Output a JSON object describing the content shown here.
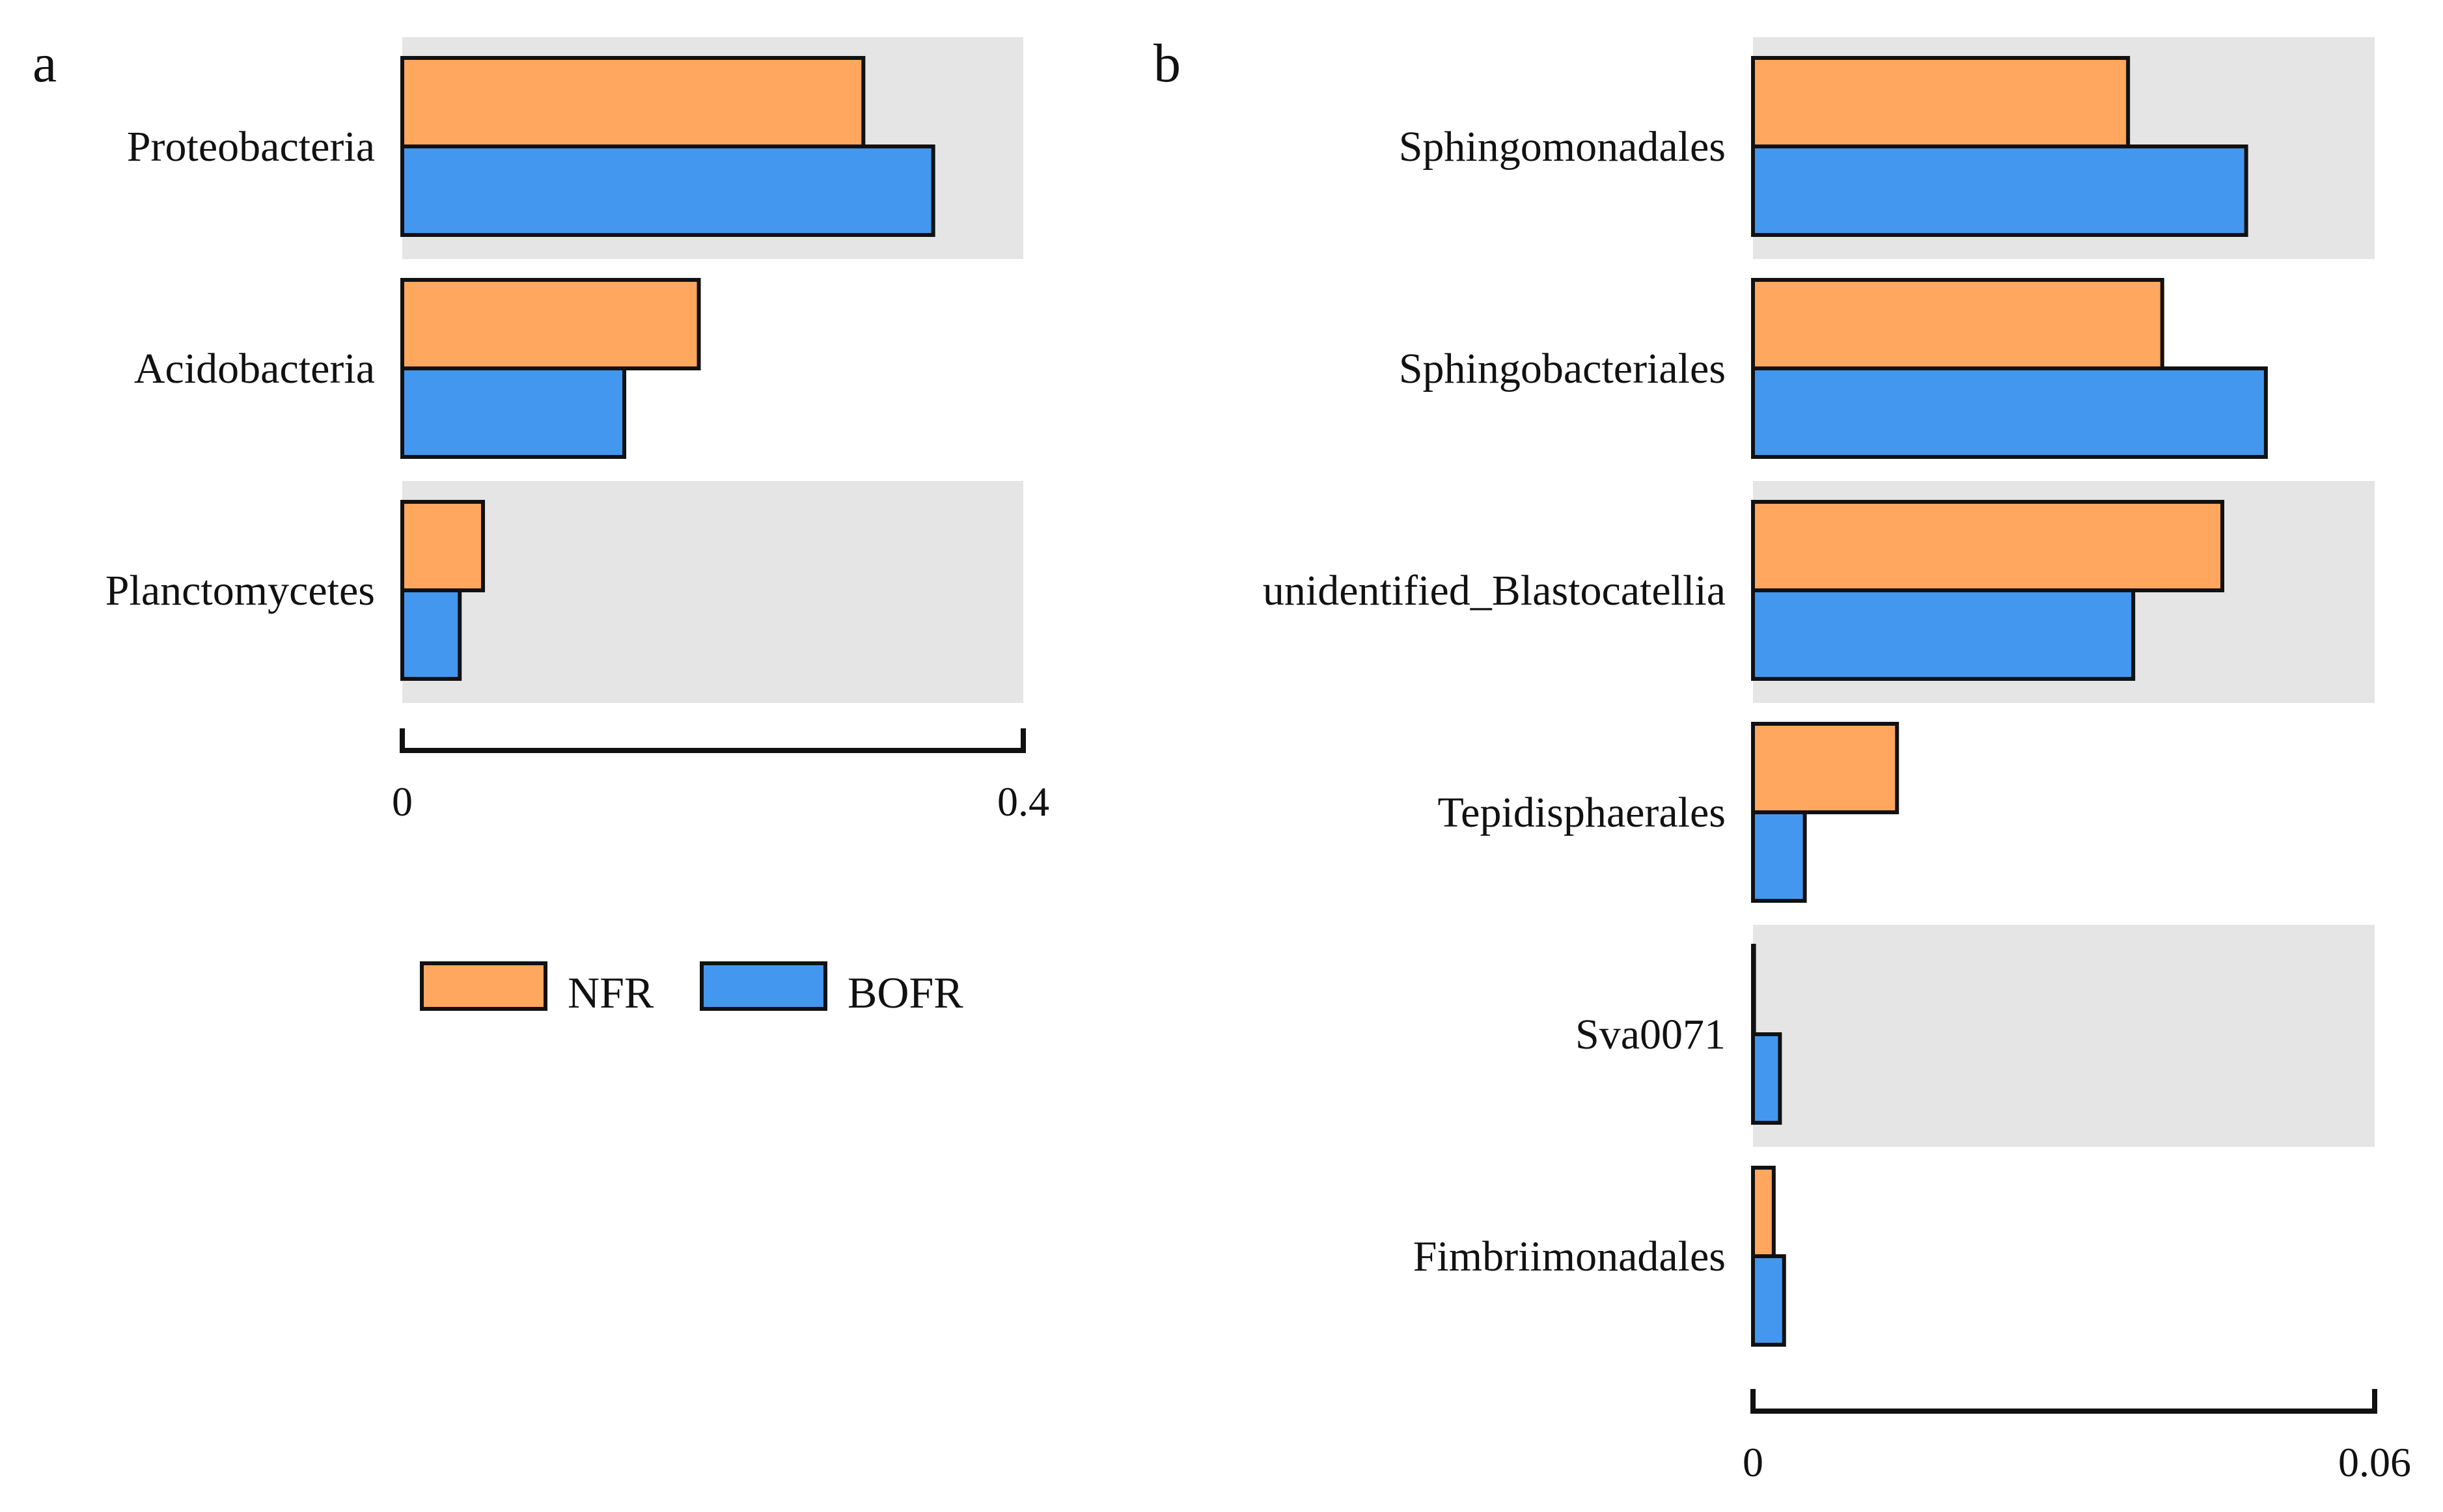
{
  "colors": {
    "NFR": "#FFA75E",
    "BOFR": "#4497EE",
    "band": "#E5E5E5",
    "stroke": "#111111"
  },
  "legend": [
    {
      "key": "NFR",
      "label": "NFR"
    },
    {
      "key": "BOFR",
      "label": "BOFR"
    }
  ],
  "chart_data": [
    {
      "type": "bar",
      "orientation": "horizontal",
      "panel": "a",
      "categories": [
        "Proteobacteria",
        "Acidobacteria",
        "Planctomycetes"
      ],
      "series": [
        {
          "name": "NFR",
          "values": [
            0.297,
            0.191,
            0.052
          ]
        },
        {
          "name": "BOFR",
          "values": [
            0.342,
            0.143,
            0.037
          ]
        }
      ],
      "xlim": [
        0,
        0.4
      ],
      "ticks": [
        {
          "value": 0,
          "label": "0"
        },
        {
          "value": 0.4,
          "label": "0.4"
        }
      ],
      "banded_rows": [
        0,
        2
      ]
    },
    {
      "type": "bar",
      "orientation": "horizontal",
      "panel": "b",
      "categories": [
        "Sphingomonadales",
        "Sphingobacteriales",
        "unidentified_Blastocatellia",
        "Tepidisphaerales",
        "Sva0071",
        "Fimbriimonadales"
      ],
      "series": [
        {
          "name": "NFR",
          "values": [
            0.0362,
            0.0395,
            0.0453,
            0.0139,
            0.0001,
            0.002
          ]
        },
        {
          "name": "BOFR",
          "values": [
            0.0476,
            0.0495,
            0.0367,
            0.005,
            0.0026,
            0.003
          ]
        }
      ],
      "xlim": [
        0,
        0.06
      ],
      "ticks": [
        {
          "value": 0,
          "label": "0"
        },
        {
          "value": 0.06,
          "label": "0.06"
        }
      ],
      "banded_rows": [
        0,
        2,
        4
      ]
    }
  ]
}
